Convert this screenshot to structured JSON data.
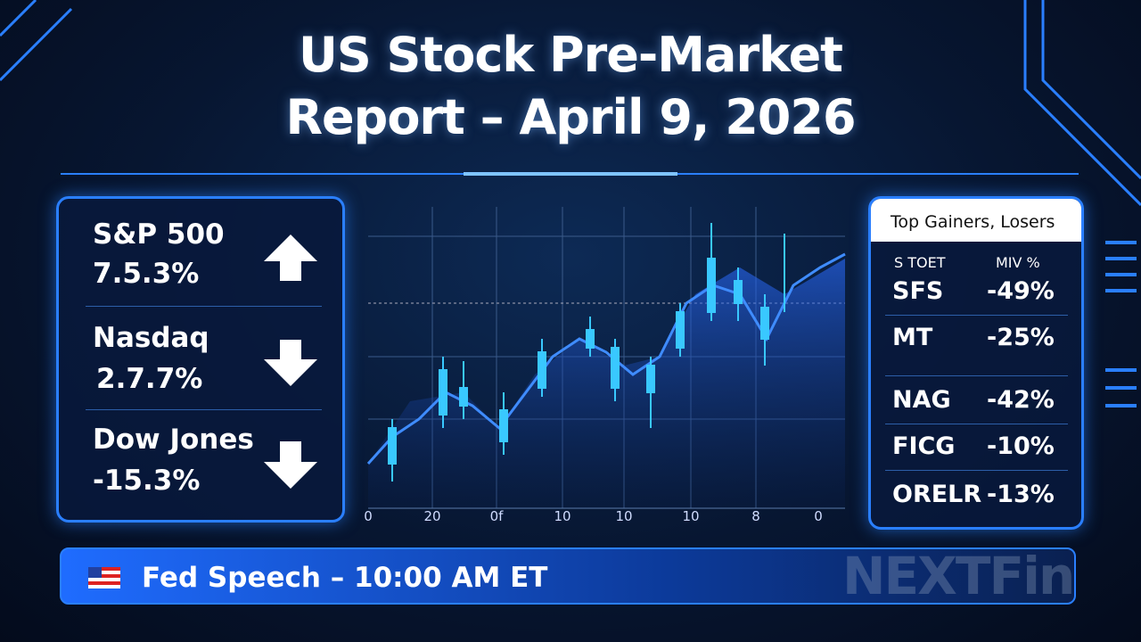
{
  "header": {
    "title_lines": [
      "US Stock Pre-Market",
      "Report – April 9, 2026"
    ]
  },
  "indices": [
    {
      "name": "S&P 500",
      "change": "7.5.3%"
    },
    {
      "name": "Nasdaq",
      "change": "2.7.7%"
    },
    {
      "name": "Dow Jones",
      "change": "-15.3%"
    }
  ],
  "chart": {
    "x_labels": [
      "0",
      "20",
      "0f",
      "10",
      "10",
      "10",
      "8",
      "0"
    ]
  },
  "movers": {
    "title": "Top Gainers, Losers",
    "columns": [
      "S TOET",
      "MIV %"
    ],
    "rows": [
      [
        "SFS",
        "-49%"
      ],
      [
        "MT",
        "-25%"
      ],
      [
        "NAG",
        "-42%"
      ],
      [
        "FICG",
        "-10%"
      ],
      [
        "ORELR",
        "-13%"
      ]
    ]
  },
  "banner": {
    "text": "Fed Speech – 10:00 AM ET"
  },
  "logo": {
    "text": "NEXTFin"
  }
}
